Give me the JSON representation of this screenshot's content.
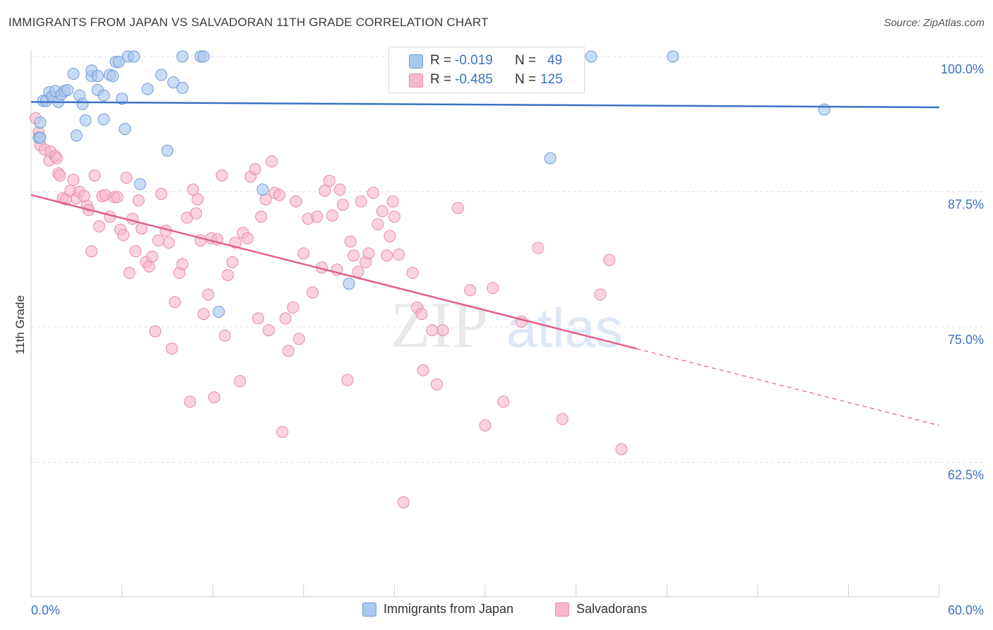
{
  "title": "IMMIGRANTS FROM JAPAN VS SALVADORAN 11TH GRADE CORRELATION CHART",
  "source": "Source: ZipAtlas.com",
  "watermark": {
    "zip": "ZIP",
    "atlas": "atlas"
  },
  "legend_stats": [
    {
      "r_label": "R =",
      "r_value": "-0.019",
      "n_label": "N =",
      "n_value": "49",
      "color": "#a9c7ef",
      "border": "#6f9ad6"
    },
    {
      "r_label": "R =",
      "r_value": "-0.485",
      "n_label": "N =",
      "n_value": "125",
      "color": "#f7b8cb",
      "border": "#e88aa6"
    }
  ],
  "legend_bottom": [
    {
      "label": "Immigrants from Japan",
      "color": "#a9c7ef",
      "border": "#6f9ad6"
    },
    {
      "label": "Salvadorans",
      "color": "#f7b8cb",
      "border": "#e88aa6"
    }
  ],
  "axis": {
    "ylabel": "11th Grade",
    "x_min_label": "0.0%",
    "x_max_label": "60.0%",
    "y_ticks": [
      "100.0%",
      "87.5%",
      "75.0%",
      "62.5%"
    ]
  },
  "chart_data": {
    "type": "scatter",
    "xlabel": "",
    "ylabel": "11th Grade",
    "xlim": [
      0,
      60
    ],
    "ylim": [
      52,
      101
    ],
    "y_gridlines": [
      100,
      87.5,
      75,
      62.5
    ],
    "grid": true,
    "legend_placement": "top-center",
    "series": [
      {
        "name": "Immigrants from Japan",
        "color": "#a9c7ef",
        "edge": "#6f9ad6",
        "trend": {
          "x": [
            0,
            60
          ],
          "y": [
            95.8,
            95.3
          ],
          "color": "#3b72c4"
        },
        "points": [
          [
            0.5,
            92.5
          ],
          [
            0.6,
            92.5
          ],
          [
            0.6,
            93.9
          ],
          [
            0.8,
            95.9
          ],
          [
            1.0,
            95.9
          ],
          [
            1.2,
            96.7
          ],
          [
            1.4,
            96.3
          ],
          [
            1.6,
            96.8
          ],
          [
            1.8,
            95.8
          ],
          [
            2.0,
            96.5
          ],
          [
            2.2,
            96.8
          ],
          [
            2.4,
            96.9
          ],
          [
            2.8,
            98.4
          ],
          [
            3.0,
            92.7
          ],
          [
            3.2,
            96.4
          ],
          [
            3.4,
            95.6
          ],
          [
            3.6,
            94.1
          ],
          [
            4.0,
            98.2
          ],
          [
            4.0,
            98.7
          ],
          [
            4.4,
            98.2
          ],
          [
            4.4,
            96.9
          ],
          [
            4.8,
            96.4
          ],
          [
            4.8,
            94.2
          ],
          [
            5.2,
            98.3
          ],
          [
            5.4,
            98.2
          ],
          [
            5.6,
            99.5
          ],
          [
            5.8,
            99.5
          ],
          [
            6.0,
            96.1
          ],
          [
            6.2,
            93.3
          ],
          [
            6.4,
            100
          ],
          [
            6.8,
            100
          ],
          [
            7.2,
            88.2
          ],
          [
            7.7,
            97.0
          ],
          [
            8.6,
            98.3
          ],
          [
            9.0,
            91.3
          ],
          [
            9.4,
            97.6
          ],
          [
            10.0,
            97.1
          ],
          [
            10.0,
            100
          ],
          [
            11.2,
            100
          ],
          [
            11.4,
            100
          ],
          [
            12.4,
            76.4
          ],
          [
            15.3,
            87.7
          ],
          [
            21.0,
            79.0
          ],
          [
            28.3,
            100
          ],
          [
            30.3,
            100
          ],
          [
            34.3,
            90.6
          ],
          [
            37.0,
            100
          ],
          [
            42.4,
            100
          ],
          [
            52.4,
            95.1
          ]
        ]
      },
      {
        "name": "Salvadorans",
        "color": "#f7b8cb",
        "edge": "#e88aa6",
        "trend": {
          "x": [
            0,
            40
          ],
          "y": [
            87.2,
            73.0
          ],
          "dash_x": [
            40,
            60
          ],
          "dash_y": [
            73.0,
            65.9
          ],
          "color": "#e0608a"
        },
        "points": [
          [
            0.3,
            94.3
          ],
          [
            0.5,
            93.0
          ],
          [
            0.6,
            91.8
          ],
          [
            0.9,
            91.4
          ],
          [
            1.2,
            90.4
          ],
          [
            1.3,
            91.2
          ],
          [
            1.6,
            90.8
          ],
          [
            1.7,
            90.6
          ],
          [
            1.8,
            89.2
          ],
          [
            1.9,
            89.0
          ],
          [
            2.1,
            86.9
          ],
          [
            2.3,
            86.8
          ],
          [
            2.6,
            87.6
          ],
          [
            2.8,
            88.6
          ],
          [
            3.0,
            86.9
          ],
          [
            3.2,
            87.5
          ],
          [
            3.5,
            87.1
          ],
          [
            3.7,
            86.2
          ],
          [
            3.8,
            85.8
          ],
          [
            4.0,
            82.0
          ],
          [
            4.2,
            89.0
          ],
          [
            4.5,
            84.3
          ],
          [
            4.7,
            87.1
          ],
          [
            4.9,
            87.2
          ],
          [
            5.2,
            85.2
          ],
          [
            5.5,
            87.0
          ],
          [
            5.7,
            87.0
          ],
          [
            5.9,
            84.0
          ],
          [
            6.1,
            83.5
          ],
          [
            6.3,
            88.8
          ],
          [
            6.5,
            80.0
          ],
          [
            6.7,
            85.0
          ],
          [
            6.9,
            82.0
          ],
          [
            7.1,
            86.7
          ],
          [
            7.3,
            84.1
          ],
          [
            7.6,
            81.0
          ],
          [
            7.8,
            80.6
          ],
          [
            8.0,
            81.5
          ],
          [
            8.2,
            74.6
          ],
          [
            8.4,
            83.0
          ],
          [
            8.6,
            87.3
          ],
          [
            8.9,
            83.9
          ],
          [
            9.1,
            82.8
          ],
          [
            9.3,
            73.0
          ],
          [
            9.5,
            77.3
          ],
          [
            9.8,
            80.0
          ],
          [
            10.0,
            80.8
          ],
          [
            10.3,
            85.1
          ],
          [
            10.5,
            68.1
          ],
          [
            10.7,
            87.7
          ],
          [
            10.9,
            85.5
          ],
          [
            11.0,
            86.8
          ],
          [
            11.2,
            83.0
          ],
          [
            11.4,
            76.2
          ],
          [
            11.7,
            78.0
          ],
          [
            11.9,
            83.2
          ],
          [
            12.1,
            68.5
          ],
          [
            12.3,
            83.1
          ],
          [
            12.6,
            89.0
          ],
          [
            12.8,
            74.2
          ],
          [
            13.0,
            79.8
          ],
          [
            13.3,
            81.0
          ],
          [
            13.5,
            82.8
          ],
          [
            13.8,
            70.0
          ],
          [
            14.0,
            83.7
          ],
          [
            14.3,
            83.2
          ],
          [
            14.5,
            88.9
          ],
          [
            14.8,
            89.6
          ],
          [
            15.0,
            75.8
          ],
          [
            15.2,
            85.2
          ],
          [
            15.5,
            86.8
          ],
          [
            15.7,
            74.7
          ],
          [
            15.9,
            90.3
          ],
          [
            16.1,
            87.4
          ],
          [
            16.4,
            87.2
          ],
          [
            16.6,
            65.3
          ],
          [
            16.8,
            75.8
          ],
          [
            17.0,
            72.8
          ],
          [
            17.3,
            76.8
          ],
          [
            17.5,
            86.6
          ],
          [
            17.7,
            73.9
          ],
          [
            18.0,
            81.8
          ],
          [
            18.3,
            85.0
          ],
          [
            18.6,
            78.2
          ],
          [
            18.9,
            85.2
          ],
          [
            19.2,
            80.5
          ],
          [
            19.4,
            87.6
          ],
          [
            19.7,
            88.5
          ],
          [
            19.9,
            85.3
          ],
          [
            20.2,
            80.3
          ],
          [
            20.4,
            87.7
          ],
          [
            20.6,
            86.3
          ],
          [
            20.9,
            70.1
          ],
          [
            21.1,
            82.9
          ],
          [
            21.3,
            81.6
          ],
          [
            21.6,
            80.1
          ],
          [
            21.8,
            86.6
          ],
          [
            22.1,
            81.0
          ],
          [
            22.3,
            81.8
          ],
          [
            22.6,
            87.4
          ],
          [
            22.9,
            84.5
          ],
          [
            23.2,
            85.7
          ],
          [
            23.5,
            81.6
          ],
          [
            23.7,
            83.4
          ],
          [
            23.9,
            86.6
          ],
          [
            24.0,
            85.2
          ],
          [
            24.3,
            81.7
          ],
          [
            24.6,
            58.8
          ],
          [
            25.2,
            80.0
          ],
          [
            25.5,
            76.8
          ],
          [
            25.8,
            76.2
          ],
          [
            25.9,
            71.0
          ],
          [
            26.5,
            74.7
          ],
          [
            26.8,
            69.7
          ],
          [
            27.2,
            74.7
          ],
          [
            28.2,
            86.0
          ],
          [
            29.0,
            78.4
          ],
          [
            30.0,
            65.9
          ],
          [
            30.5,
            78.6
          ],
          [
            31.2,
            68.1
          ],
          [
            32.4,
            75.5
          ],
          [
            33.5,
            82.3
          ],
          [
            35.1,
            66.5
          ],
          [
            37.6,
            78.0
          ],
          [
            38.2,
            81.2
          ],
          [
            39.0,
            63.7
          ]
        ]
      }
    ]
  }
}
